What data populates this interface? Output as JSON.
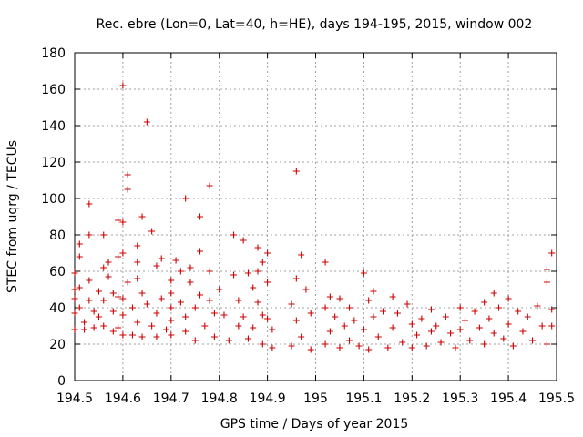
{
  "chart_data": {
    "type": "scatter",
    "title": "Rec. ebre (Lon=0, Lat=40, h=HE), days 194-195, 2015, window 002",
    "xlabel": "GPS time / Days of year 2015",
    "ylabel": "STEC from uqrg / TECUs",
    "xlim": [
      194.5,
      195.5
    ],
    "ylim": [
      0,
      180
    ],
    "x_ticks": [
      194.5,
      194.6,
      194.7,
      194.8,
      194.9,
      195,
      195.1,
      195.2,
      195.3,
      195.4,
      195.5
    ],
    "x_tick_labels": [
      "194.5",
      "194.6",
      "194.7",
      "194.8",
      "194.9",
      "195",
      "195.1",
      "195.2",
      "195.3",
      "195.4",
      "195.5"
    ],
    "y_ticks": [
      0,
      20,
      40,
      60,
      80,
      100,
      120,
      140,
      160,
      180
    ],
    "y_tick_labels": [
      "0",
      "20",
      "40",
      "60",
      "80",
      "100",
      "120",
      "140",
      "160",
      "180"
    ],
    "grid": true,
    "marker": "+",
    "marker_color": "#cc0000",
    "series": [
      {
        "points": [
          [
            194.5,
            59
          ],
          [
            194.5,
            50
          ],
          [
            194.5,
            45
          ],
          [
            194.5,
            37
          ],
          [
            194.5,
            28
          ],
          [
            194.51,
            75
          ],
          [
            194.51,
            68
          ],
          [
            194.51,
            51
          ],
          [
            194.51,
            40
          ],
          [
            194.52,
            32
          ],
          [
            194.52,
            28
          ],
          [
            194.53,
            97
          ],
          [
            194.53,
            80
          ],
          [
            194.53,
            55
          ],
          [
            194.53,
            44
          ],
          [
            194.54,
            38
          ],
          [
            194.54,
            29
          ],
          [
            194.55,
            49
          ],
          [
            194.55,
            35
          ],
          [
            194.56,
            80
          ],
          [
            194.56,
            62
          ],
          [
            194.56,
            44
          ],
          [
            194.56,
            30
          ],
          [
            194.57,
            65
          ],
          [
            194.57,
            57
          ],
          [
            194.58,
            48
          ],
          [
            194.58,
            38
          ],
          [
            194.58,
            27
          ],
          [
            194.59,
            88
          ],
          [
            194.59,
            68
          ],
          [
            194.59,
            46
          ],
          [
            194.59,
            29
          ],
          [
            194.6,
            162
          ],
          [
            194.6,
            87
          ],
          [
            194.6,
            70
          ],
          [
            194.6,
            45
          ],
          [
            194.6,
            36
          ],
          [
            194.6,
            25
          ],
          [
            194.61,
            113
          ],
          [
            194.61,
            105
          ],
          [
            194.61,
            54
          ],
          [
            194.62,
            40
          ],
          [
            194.62,
            25
          ],
          [
            194.63,
            74
          ],
          [
            194.63,
            65
          ],
          [
            194.63,
            56
          ],
          [
            194.63,
            32
          ],
          [
            194.64,
            90
          ],
          [
            194.64,
            48
          ],
          [
            194.64,
            24
          ],
          [
            194.65,
            142
          ],
          [
            194.65,
            42
          ],
          [
            194.66,
            82
          ],
          [
            194.66,
            30
          ],
          [
            194.67,
            63
          ],
          [
            194.67,
            37
          ],
          [
            194.67,
            24
          ],
          [
            194.68,
            67
          ],
          [
            194.68,
            45
          ],
          [
            194.69,
            28
          ],
          [
            194.7,
            55
          ],
          [
            194.7,
            48
          ],
          [
            194.7,
            40
          ],
          [
            194.7,
            33
          ],
          [
            194.7,
            25
          ],
          [
            194.71,
            66
          ],
          [
            194.72,
            60
          ],
          [
            194.72,
            43
          ],
          [
            194.73,
            100
          ],
          [
            194.73,
            35
          ],
          [
            194.73,
            27
          ],
          [
            194.74,
            62
          ],
          [
            194.74,
            54
          ],
          [
            194.75,
            40
          ],
          [
            194.75,
            22
          ],
          [
            194.76,
            90
          ],
          [
            194.76,
            71
          ],
          [
            194.76,
            47
          ],
          [
            194.77,
            30
          ],
          [
            194.78,
            107
          ],
          [
            194.78,
            60
          ],
          [
            194.78,
            44
          ],
          [
            194.79,
            37
          ],
          [
            194.79,
            24
          ],
          [
            194.8,
            50
          ],
          [
            194.81,
            36
          ],
          [
            194.82,
            22
          ],
          [
            194.83,
            80
          ],
          [
            194.83,
            58
          ],
          [
            194.84,
            44
          ],
          [
            194.84,
            30
          ],
          [
            194.85,
            77
          ],
          [
            194.85,
            35
          ],
          [
            194.86,
            59
          ],
          [
            194.86,
            23
          ],
          [
            194.87,
            51
          ],
          [
            194.87,
            29
          ],
          [
            194.88,
            73
          ],
          [
            194.88,
            60
          ],
          [
            194.88,
            43
          ],
          [
            194.89,
            65
          ],
          [
            194.89,
            36
          ],
          [
            194.89,
            20
          ],
          [
            194.9,
            70
          ],
          [
            194.9,
            54
          ],
          [
            194.9,
            34
          ],
          [
            194.91,
            28
          ],
          [
            194.91,
            18
          ],
          [
            194.95,
            42
          ],
          [
            194.95,
            19
          ],
          [
            194.96,
            115
          ],
          [
            194.96,
            56
          ],
          [
            194.96,
            33
          ],
          [
            194.97,
            69
          ],
          [
            194.97,
            24
          ],
          [
            194.98,
            50
          ],
          [
            194.99,
            37
          ],
          [
            194.99,
            17
          ],
          [
            195.02,
            65
          ],
          [
            195.02,
            40
          ],
          [
            195.02,
            20
          ],
          [
            195.03,
            46
          ],
          [
            195.03,
            27
          ],
          [
            195.04,
            35
          ],
          [
            195.05,
            45
          ],
          [
            195.05,
            18
          ],
          [
            195.06,
            30
          ],
          [
            195.07,
            40
          ],
          [
            195.07,
            22
          ],
          [
            195.08,
            33
          ],
          [
            195.09,
            19
          ],
          [
            195.1,
            59
          ],
          [
            195.1,
            28
          ],
          [
            195.11,
            44
          ],
          [
            195.11,
            17
          ],
          [
            195.12,
            49
          ],
          [
            195.12,
            35
          ],
          [
            195.13,
            24
          ],
          [
            195.14,
            38
          ],
          [
            195.15,
            18
          ],
          [
            195.16,
            46
          ],
          [
            195.16,
            29
          ],
          [
            195.17,
            37
          ],
          [
            195.18,
            21
          ],
          [
            195.19,
            42
          ],
          [
            195.2,
            31
          ],
          [
            195.2,
            18
          ],
          [
            195.21,
            25
          ],
          [
            195.22,
            34
          ],
          [
            195.23,
            19
          ],
          [
            195.24,
            39
          ],
          [
            195.24,
            27
          ],
          [
            195.25,
            30
          ],
          [
            195.26,
            21
          ],
          [
            195.27,
            35
          ],
          [
            195.28,
            26
          ],
          [
            195.29,
            18
          ],
          [
            195.3,
            40
          ],
          [
            195.3,
            28
          ],
          [
            195.31,
            33
          ],
          [
            195.32,
            22
          ],
          [
            195.33,
            38
          ],
          [
            195.34,
            29
          ],
          [
            195.35,
            43
          ],
          [
            195.35,
            20
          ],
          [
            195.36,
            34
          ],
          [
            195.37,
            48
          ],
          [
            195.37,
            26
          ],
          [
            195.38,
            40
          ],
          [
            195.39,
            23
          ],
          [
            195.4,
            45
          ],
          [
            195.4,
            31
          ],
          [
            195.41,
            19
          ],
          [
            195.42,
            38
          ],
          [
            195.43,
            27
          ],
          [
            195.44,
            35
          ],
          [
            195.45,
            22
          ],
          [
            195.46,
            41
          ],
          [
            195.47,
            30
          ],
          [
            195.48,
            61
          ],
          [
            195.48,
            54
          ],
          [
            195.48,
            20
          ],
          [
            195.49,
            70
          ],
          [
            195.49,
            39
          ],
          [
            195.49,
            30
          ]
        ]
      }
    ]
  }
}
